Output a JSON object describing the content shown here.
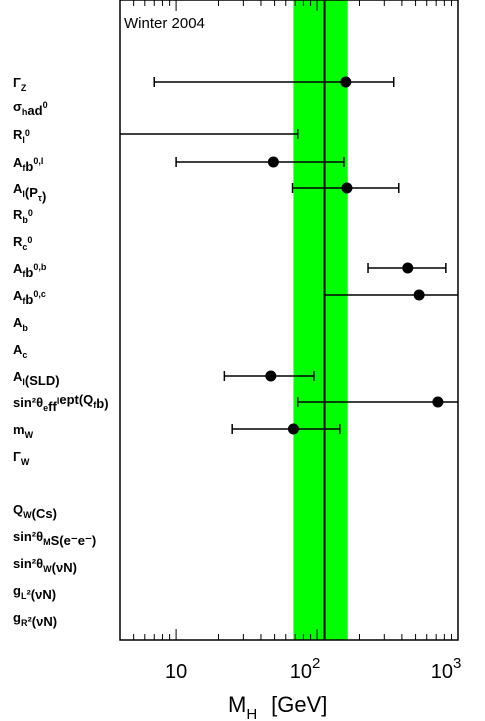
{
  "chart_data": {
    "type": "scatter",
    "title": "Winter 2004",
    "xlabel": "M_H  [GeV]",
    "x_scale": "log",
    "xlim": [
      4,
      1000
    ],
    "x_ticks": [
      {
        "value": 10,
        "base": "10",
        "exp": ""
      },
      {
        "value": 100,
        "base": "10",
        "exp": "2"
      },
      {
        "value": 1000,
        "base": "10",
        "exp": "3"
      }
    ],
    "band": {
      "low": 68,
      "high": 165,
      "color": "#00ff00"
    },
    "central_line": 113,
    "rows": [
      {
        "label": "Γ_Z",
        "central": 160,
        "low": 7,
        "high": 350
      },
      {
        "label": "σ_had^0",
        "central": null,
        "low": null,
        "high": null
      },
      {
        "label": "R_l^0",
        "central": null,
        "low": 4,
        "high": 73
      },
      {
        "label": "A_fb^{0,l}",
        "central": 49,
        "low": 10,
        "high": 155
      },
      {
        "label": "A_l(P_τ)",
        "central": 163,
        "low": 67,
        "high": 380
      },
      {
        "label": "R_b^0",
        "central": null,
        "low": null,
        "high": null
      },
      {
        "label": "R_c^0",
        "central": null,
        "low": null,
        "high": null
      },
      {
        "label": "A_fb^{0,b}",
        "central": 440,
        "low": 230,
        "high": 820
      },
      {
        "label": "A_fb^{0,c}",
        "central": 530,
        "low": 113,
        "high": 1000
      },
      {
        "label": "A_b",
        "central": null,
        "low": null,
        "high": null
      },
      {
        "label": "A_c",
        "central": null,
        "low": null,
        "high": null
      },
      {
        "label": "A_l(SLD)",
        "central": 47,
        "low": 22,
        "high": 95
      },
      {
        "label": "sin²θ_eff^lept(Q_fb)",
        "central": 720,
        "low": 73,
        "high": 1000
      },
      {
        "label": "m_W",
        "central": 68,
        "low": 25,
        "high": 145
      },
      {
        "label": "Γ_W",
        "central": null,
        "low": null,
        "high": null
      },
      {
        "label": "Q_W(Cs)",
        "central": null,
        "low": null,
        "high": null
      },
      {
        "label": "sin²θ_MS(e⁻e⁻)",
        "central": null,
        "low": null,
        "high": null
      },
      {
        "label": "sin²θ_W(νN)",
        "central": null,
        "low": null,
        "high": null
      },
      {
        "label": "g_L²(νN)",
        "central": null,
        "low": null,
        "high": null
      },
      {
        "label": "g_R²(νN)",
        "central": null,
        "low": null,
        "high": null
      }
    ],
    "colors": {
      "band": "#00ff00",
      "marker": "#000000",
      "frame": "#000000"
    }
  }
}
